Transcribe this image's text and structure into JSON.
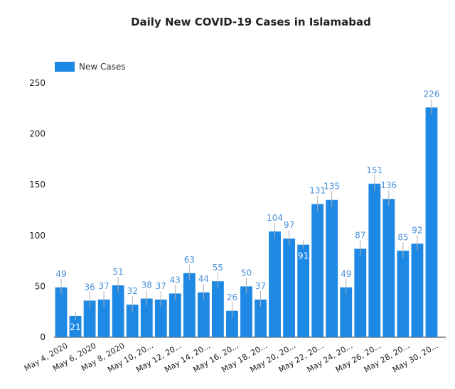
{
  "chart_data": {
    "type": "bar",
    "title": "Daily New COVID-19 Cases in Islamabad",
    "legend": "top-left",
    "series": [
      {
        "name": "New Cases",
        "color": "#1e88e5",
        "values": [
          49,
          21,
          36,
          37,
          51,
          32,
          38,
          37,
          43,
          63,
          44,
          55,
          26,
          50,
          37,
          104,
          97,
          91,
          131,
          135,
          49,
          87,
          151,
          136,
          85,
          92,
          226
        ]
      }
    ],
    "x_tick_labels": [
      "May 4, 2020",
      "May 6, 2020",
      "May 8, 2020",
      "May 10, 20...",
      "May 12, 20...",
      "May 14, 20...",
      "May 16, 20...",
      "May 18, 20...",
      "May 20, 20...",
      "May 22, 20...",
      "May 24, 20...",
      "May 26, 20...",
      "May 28, 20...",
      "May 30, 20..."
    ],
    "y_ticks": [
      0,
      50,
      100,
      150,
      200,
      250
    ],
    "ylim": [
      0,
      250
    ],
    "label_color": "#4a90d9",
    "label_inside_color": "#ffffff"
  }
}
